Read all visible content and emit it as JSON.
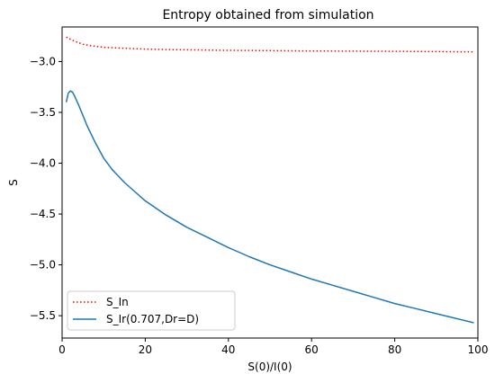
{
  "chart_data": {
    "type": "line",
    "title": "Entropy obtained from simulation",
    "xlabel": "S(0)/I(0)",
    "ylabel": "S",
    "xlim": [
      0,
      100
    ],
    "ylim": [
      -5.72,
      -2.66
    ],
    "xticks": [
      0,
      20,
      40,
      60,
      80,
      100
    ],
    "yticks": [
      -3.0,
      -3.5,
      -4.0,
      -4.5,
      -5.0,
      -5.5
    ],
    "xtick_labels": [
      "0",
      "20",
      "40",
      "60",
      "80",
      "100"
    ],
    "ytick_labels": [
      "−3.0",
      "−3.5",
      "−4.0",
      "−4.5",
      "−5.0",
      "−5.5"
    ],
    "grid": false,
    "legend_position": "lower-left",
    "series": [
      {
        "name": "S_In",
        "color": "#ff0000",
        "style": "dotted",
        "x": [
          1,
          2,
          3,
          5,
          7,
          10,
          15,
          20,
          25,
          30,
          40,
          50,
          60,
          70,
          80,
          90,
          99
        ],
        "y": [
          -2.76,
          -2.78,
          -2.8,
          -2.83,
          -2.845,
          -2.86,
          -2.87,
          -2.878,
          -2.882,
          -2.885,
          -2.89,
          -2.893,
          -2.896,
          -2.898,
          -2.9,
          -2.902,
          -2.905
        ]
      },
      {
        "name": "S_Ir(0.707,Dr=D)",
        "color": "#1f77b4",
        "style": "solid",
        "x": [
          1,
          1.5,
          2,
          2.5,
          3,
          4,
          5,
          6,
          8,
          10,
          12,
          15,
          20,
          25,
          30,
          35,
          40,
          45,
          50,
          55,
          60,
          65,
          70,
          75,
          80,
          85,
          90,
          95,
          99
        ],
        "y": [
          -3.4,
          -3.31,
          -3.29,
          -3.3,
          -3.34,
          -3.43,
          -3.53,
          -3.63,
          -3.8,
          -3.95,
          -4.06,
          -4.19,
          -4.37,
          -4.51,
          -4.63,
          -4.73,
          -4.83,
          -4.92,
          -5.0,
          -5.07,
          -5.14,
          -5.2,
          -5.26,
          -5.32,
          -5.38,
          -5.43,
          -5.48,
          -5.53,
          -5.57
        ]
      }
    ]
  }
}
